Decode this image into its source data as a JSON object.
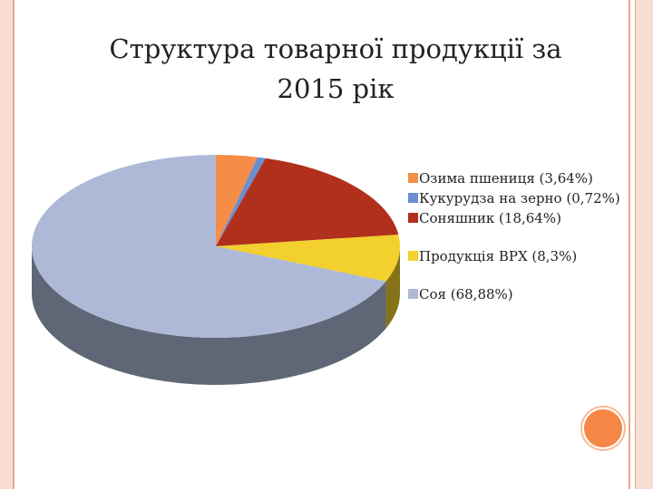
{
  "slide": {
    "title": "Структура товарної продукції за\n2015 рік"
  },
  "chart_data": {
    "type": "pie",
    "title": "Структура товарної продукції за 2015 рік",
    "slices": [
      {
        "label": "Озима пшениця (3,64%)",
        "value": 3.64,
        "color": "#f58d47"
      },
      {
        "label": "Кукурудза на зерно (0,72%)",
        "value": 0.72,
        "color": "#6b8fd1"
      },
      {
        "label": "Соняшник (18,64%)",
        "value": 18.64,
        "color": "#b0301c"
      },
      {
        "label": "Продукція ВРХ (8,3%)",
        "value": 8.3,
        "color": "#f2d02d"
      },
      {
        "label": "Соя (68,88%)",
        "value": 68.88,
        "color": "#adb9d6"
      }
    ],
    "legend_placement": "right",
    "style": "3d"
  }
}
